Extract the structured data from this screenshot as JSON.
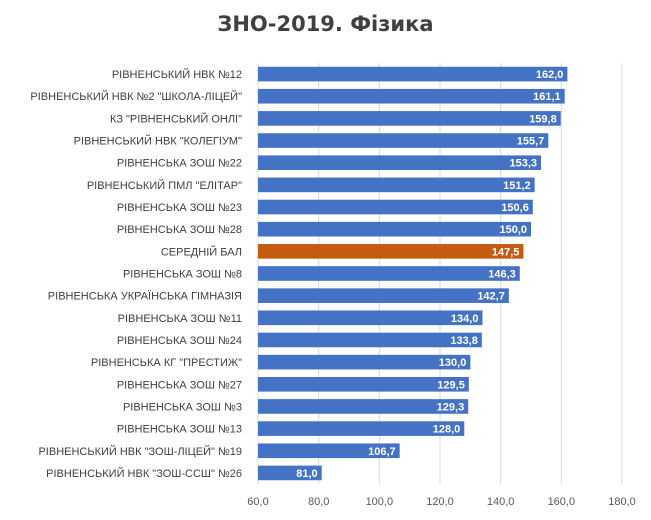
{
  "chart_data": {
    "type": "bar",
    "orientation": "horizontal",
    "title": "ЗНО-2019. Фізика",
    "categories": [
      "РІВНЕНСЬКИЙ НВК №12",
      "РІВНЕНСЬКИЙ НВК №2 \"ШКОЛА-ЛІЦЕЙ\"",
      "КЗ \"РІВНЕНСЬКИЙ ОНЛІ\"",
      "РІВНЕНСЬКИЙ НВК \"КОЛЕГІУМ\"",
      "РІВНЕНСЬКА ЗОШ №22",
      "РІВНЕНСЬКИЙ ПМЛ \"ЕЛІТАР\"",
      "РІВНЕНСЬКА ЗОШ №23",
      "РІВНЕНСЬКА ЗОШ №28",
      "СЕРЕДНІЙ БАЛ",
      "РІВНЕНСЬКА ЗОШ №8",
      "РІВНЕНСЬКА УКРАЇНСЬКА ГІМНАЗІЯ",
      "РІВНЕНСЬКА ЗОШ №11",
      "РІВНЕНСЬКА ЗОШ №24",
      "РІВНЕНСЬКА КГ \"ПРЕСТИЖ\"",
      "РІВНЕНСЬКА ЗОШ №27",
      "РІВНЕНСЬКА ЗОШ №3",
      "РІВНЕНСЬКА ЗОШ №13",
      "РІВНЕНСЬКИЙ НВК \"ЗОШ-ЛІЦЕЙ\" №19",
      "РІВНЕНСЬКИЙ НВК \"ЗОШ-ССШ\" №26"
    ],
    "values": [
      162.0,
      161.1,
      159.8,
      155.7,
      153.3,
      151.2,
      150.6,
      150.0,
      147.5,
      146.3,
      142.7,
      134.0,
      133.8,
      130.0,
      129.5,
      129.3,
      128.0,
      106.7,
      81.0
    ],
    "value_labels": [
      "162,0",
      "161,1",
      "159,8",
      "155,7",
      "153,3",
      "151,2",
      "150,6",
      "150,0",
      "147,5",
      "146,3",
      "142,7",
      "134,0",
      "133,8",
      "130,0",
      "129,5",
      "129,3",
      "128,0",
      "106,7",
      "81,0"
    ],
    "highlight_category": "СЕРЕДНІЙ БАЛ",
    "xlim": [
      60,
      180
    ],
    "ticks": [
      60,
      80,
      100,
      120,
      140,
      160,
      180
    ],
    "tick_labels": [
      "60,0",
      "80,0",
      "100,0",
      "120,0",
      "140,0",
      "160,0",
      "180,0"
    ],
    "grid": true,
    "legend": "none",
    "colors": {
      "bar": "#4472c4",
      "highlight": "#c55a11",
      "grid": "#d9d9d9",
      "text": "#404040"
    }
  }
}
